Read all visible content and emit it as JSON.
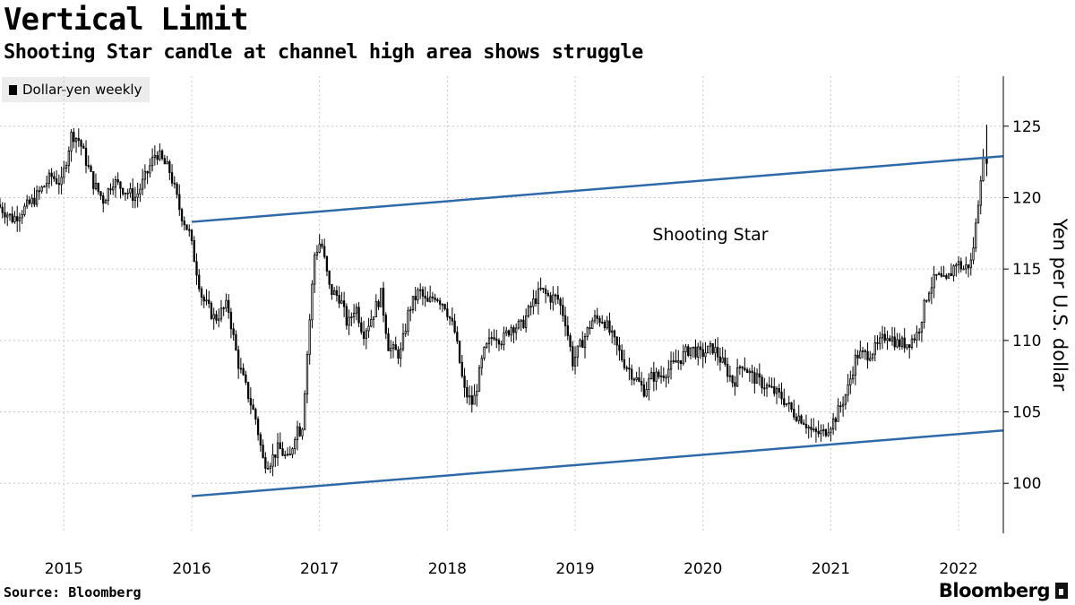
{
  "header": {
    "title": "Vertical Limit",
    "subtitle": "Shooting Star candle at channel high area shows struggle"
  },
  "footer": {
    "source": "Source: Bloomberg",
    "brand": "Bloomberg"
  },
  "colors": {
    "candles": "#000000",
    "channel": "#2e6aa8",
    "grid": "#c8c8c8",
    "legend_bg": "#ececec"
  },
  "chart_data": {
    "type": "candlestick",
    "legend": [
      "Dollar-yen weekly"
    ],
    "ylabel": "Yen per U.S. dollar",
    "ylim": [
      96.5,
      128.5
    ],
    "yticks": [
      100,
      105,
      110,
      115,
      120,
      125
    ],
    "xlim": [
      2014.5,
      2022.35
    ],
    "xticks": [
      "2015",
      "2016",
      "2017",
      "2018",
      "2019",
      "2020",
      "2021",
      "2022"
    ],
    "grid": true,
    "annotation": "Shooting Star",
    "channel_lines": [
      {
        "start": {
          "x": 2016.0,
          "y": 118.3
        },
        "end": {
          "x": 2022.35,
          "y": 122.9
        }
      },
      {
        "start": {
          "x": 2016.0,
          "y": 99.1
        },
        "end": {
          "x": 2022.35,
          "y": 103.7
        }
      }
    ],
    "series": [
      {
        "name": "Dollar-yen weekly",
        "frequency": "weekly",
        "anchors": [
          [
            2014.5,
            119.5
          ],
          [
            2014.62,
            118.5
          ],
          [
            2014.78,
            119.8
          ],
          [
            2014.92,
            121.5
          ],
          [
            2015.0,
            121.0
          ],
          [
            2015.08,
            124.5
          ],
          [
            2015.14,
            124.0
          ],
          [
            2015.25,
            121.0
          ],
          [
            2015.33,
            119.8
          ],
          [
            2015.4,
            121.2
          ],
          [
            2015.5,
            120.5
          ],
          [
            2015.58,
            120.0
          ],
          [
            2015.66,
            121.5
          ],
          [
            2015.74,
            123.2
          ],
          [
            2015.85,
            121.8
          ],
          [
            2015.93,
            119.0
          ],
          [
            2016.0,
            117.5
          ],
          [
            2016.1,
            113.0
          ],
          [
            2016.2,
            111.5
          ],
          [
            2016.3,
            112.5
          ],
          [
            2016.38,
            108.5
          ],
          [
            2016.45,
            106.5
          ],
          [
            2016.52,
            104.5
          ],
          [
            2016.58,
            101.5
          ],
          [
            2016.63,
            101.5
          ],
          [
            2016.7,
            102.5
          ],
          [
            2016.78,
            101.5
          ],
          [
            2016.84,
            104.0
          ],
          [
            2016.88,
            103.5
          ],
          [
            2016.93,
            110.0
          ],
          [
            2016.98,
            116.0
          ],
          [
            2017.03,
            117.0
          ],
          [
            2017.1,
            113.5
          ],
          [
            2017.18,
            113.0
          ],
          [
            2017.24,
            111.0
          ],
          [
            2017.3,
            112.5
          ],
          [
            2017.36,
            110.5
          ],
          [
            2017.42,
            111.5
          ],
          [
            2017.5,
            113.2
          ],
          [
            2017.56,
            109.5
          ],
          [
            2017.65,
            109.0
          ],
          [
            2017.72,
            112.2
          ],
          [
            2017.8,
            113.5
          ],
          [
            2017.86,
            112.5
          ],
          [
            2017.92,
            113.2
          ],
          [
            2018.0,
            112.5
          ],
          [
            2018.08,
            110.5
          ],
          [
            2018.15,
            106.5
          ],
          [
            2018.22,
            105.5
          ],
          [
            2018.3,
            109.0
          ],
          [
            2018.38,
            110.5
          ],
          [
            2018.45,
            110.0
          ],
          [
            2018.52,
            111.0
          ],
          [
            2018.6,
            111.0
          ],
          [
            2018.68,
            112.5
          ],
          [
            2018.75,
            113.5
          ],
          [
            2018.82,
            113.0
          ],
          [
            2018.88,
            113.0
          ],
          [
            2018.94,
            111.5
          ],
          [
            2019.0,
            108.5
          ],
          [
            2019.08,
            110.0
          ],
          [
            2019.16,
            111.5
          ],
          [
            2019.24,
            111.5
          ],
          [
            2019.32,
            110.0
          ],
          [
            2019.4,
            108.5
          ],
          [
            2019.48,
            107.5
          ],
          [
            2019.56,
            106.5
          ],
          [
            2019.62,
            107.5
          ],
          [
            2019.68,
            107.5
          ],
          [
            2019.75,
            108.0
          ],
          [
            2019.85,
            108.8
          ],
          [
            2019.92,
            109.5
          ],
          [
            2020.0,
            109.0
          ],
          [
            2020.1,
            109.5
          ],
          [
            2020.2,
            108.0
          ],
          [
            2020.26,
            107.0
          ],
          [
            2020.32,
            108.5
          ],
          [
            2020.4,
            107.5
          ],
          [
            2020.48,
            107.0
          ],
          [
            2020.56,
            106.5
          ],
          [
            2020.64,
            106.0
          ],
          [
            2020.72,
            105.0
          ],
          [
            2020.8,
            104.5
          ],
          [
            2020.88,
            103.5
          ],
          [
            2020.96,
            103.5
          ],
          [
            2021.05,
            104.5
          ],
          [
            2021.15,
            106.5
          ],
          [
            2021.22,
            109.0
          ],
          [
            2021.3,
            109.0
          ],
          [
            2021.38,
            109.5
          ],
          [
            2021.46,
            110.5
          ],
          [
            2021.54,
            109.8
          ],
          [
            2021.62,
            109.8
          ],
          [
            2021.7,
            110.5
          ],
          [
            2021.78,
            113.5
          ],
          [
            2021.85,
            114.5
          ],
          [
            2021.92,
            114.0
          ],
          [
            2022.0,
            115.5
          ],
          [
            2022.06,
            115.0
          ],
          [
            2022.12,
            115.5
          ],
          [
            2022.16,
            118.5
          ],
          [
            2022.19,
            121.5
          ],
          [
            2022.22,
            122.8
          ]
        ],
        "last_candle": {
          "open": 122.8,
          "high": 125.1,
          "low": 121.5,
          "close": 122.4,
          "label": "Shooting Star"
        }
      }
    ]
  }
}
